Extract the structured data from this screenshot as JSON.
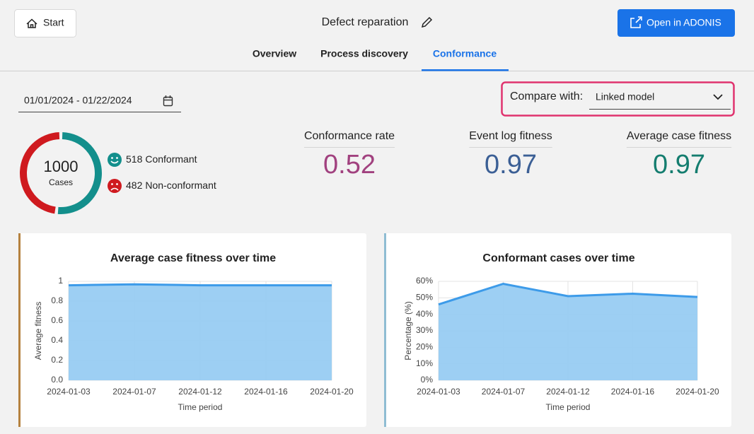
{
  "header": {
    "start_button": "Start",
    "title": "Defect reparation",
    "open_button": "Open in ADONIS",
    "tabs": [
      "Overview",
      "Process discovery",
      "Conformance"
    ]
  },
  "filters": {
    "date_range": "01/01/2024 - 01/22/2024",
    "compare_label": "Compare with:",
    "compare_value": "Linked model"
  },
  "cases": {
    "total": 1000,
    "total_label": "Cases",
    "conformant": {
      "count": 518,
      "label": "Conformant",
      "color": "#138f8c"
    },
    "non_conformant": {
      "count": 482,
      "label": "Non-conformant",
      "color": "#cf1a1f"
    }
  },
  "kpis": [
    {
      "label": "Conformance rate",
      "value": 0.52,
      "color": "#a1417f"
    },
    {
      "label": "Event log fitness",
      "value": 0.97,
      "color": "#3b5f95"
    },
    {
      "label": "Average case fitness",
      "value": 0.97,
      "color": "#147d6f"
    }
  ],
  "chart_data": [
    {
      "type": "area",
      "title": "Average case fitness over time",
      "categories": [
        "2024-01-03",
        "2024-01-07",
        "2024-01-12",
        "2024-01-16",
        "2024-01-20"
      ],
      "values": [
        0.96,
        0.97,
        0.96,
        0.96,
        0.96
      ],
      "xlabel": "Time period",
      "ylabel": "Average fitness",
      "ylim": [
        0,
        1
      ],
      "yticks": [
        {
          "value": 0,
          "label": "0.0"
        },
        0.2,
        0.4,
        0.6,
        0.8,
        1
      ],
      "color": "#3d9be9",
      "fill_color": "#98ccf2",
      "grid": true
    },
    {
      "type": "area",
      "title": "Conformant cases over time",
      "categories": [
        "2024-01-03",
        "2024-01-07",
        "2024-01-12",
        "2024-01-16",
        "2024-01-20"
      ],
      "values": [
        46,
        58.5,
        51,
        52.5,
        50.5
      ],
      "xlabel": "Time period",
      "ylabel": "Percentage (%)",
      "ylim": [
        0,
        60
      ],
      "yticks": [
        {
          "value": 0,
          "label": "0%"
        },
        {
          "value": 10,
          "label": "10%"
        },
        {
          "value": 20,
          "label": "20%"
        },
        {
          "value": 30,
          "label": "30%"
        },
        {
          "value": 40,
          "label": "40%"
        },
        {
          "value": 50,
          "label": "50%"
        },
        {
          "value": 60,
          "label": "60%"
        }
      ],
      "color": "#3d9be9",
      "fill_color": "#98ccf2",
      "grid": true
    }
  ]
}
